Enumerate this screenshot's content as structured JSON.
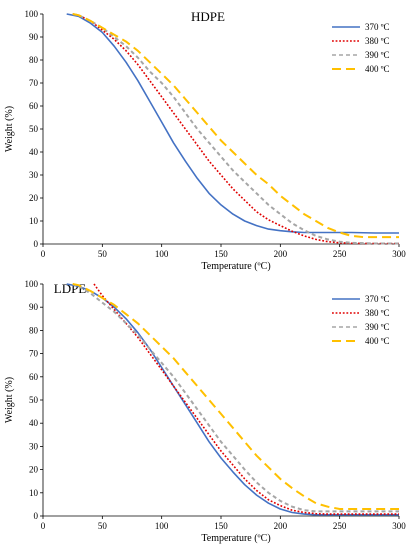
{
  "chart_data": [
    {
      "type": "line",
      "title": "HDPE",
      "xlabel": "Temperature (ºC)",
      "ylabel": "Weight (%)",
      "xlim": [
        0,
        300
      ],
      "ylim": [
        0,
        100
      ],
      "xticks": [
        0,
        50,
        100,
        150,
        200,
        250,
        300
      ],
      "yticks": [
        0,
        10,
        20,
        30,
        40,
        50,
        60,
        70,
        80,
        90,
        100
      ],
      "grid": false,
      "legend": "top-right",
      "series": [
        {
          "name": "370 ºC",
          "color": "#4472C4",
          "dash": "solid",
          "x": [
            20,
            30,
            40,
            50,
            60,
            70,
            80,
            90,
            100,
            110,
            120,
            130,
            140,
            150,
            160,
            170,
            180,
            190,
            200,
            210,
            220,
            240,
            260,
            280,
            300
          ],
          "y": [
            100,
            99,
            96,
            92,
            86,
            79,
            71,
            62,
            53,
            44,
            36,
            28.5,
            22,
            17,
            13,
            10,
            8,
            6.5,
            5.8,
            5.3,
            5,
            5,
            5,
            4.8,
            4.8
          ]
        },
        {
          "name": "380 ºC",
          "color": "#E00000",
          "dash": "dot",
          "x": [
            25,
            30,
            40,
            50,
            60,
            70,
            80,
            90,
            100,
            110,
            120,
            130,
            140,
            150,
            160,
            170,
            180,
            190,
            200,
            210,
            220,
            230,
            240,
            250,
            260,
            280,
            300
          ],
          "y": [
            100,
            99.5,
            97,
            93,
            89,
            84,
            78,
            71,
            64,
            57,
            50,
            43,
            36,
            30,
            24,
            19,
            14,
            10.5,
            8,
            5.5,
            3.5,
            2,
            1,
            0.5,
            0.3,
            0.2,
            0.2
          ]
        },
        {
          "name": "390 ºC",
          "color": "#A6A6A6",
          "dash": "dash",
          "x": [
            25,
            30,
            40,
            50,
            60,
            70,
            80,
            90,
            100,
            110,
            120,
            130,
            140,
            150,
            160,
            170,
            180,
            190,
            200,
            210,
            220,
            230,
            240,
            250,
            260,
            280,
            300
          ],
          "y": [
            100,
            99.5,
            97,
            94,
            90,
            86,
            81,
            75,
            70,
            64,
            57,
            50,
            44,
            38,
            32,
            27,
            22,
            17,
            13,
            9,
            6,
            3.5,
            2,
            1,
            0.5,
            0.2,
            0.2
          ]
        },
        {
          "name": "400 ºC",
          "color": "#FFC000",
          "dash": "longdash",
          "x": [
            25,
            30,
            40,
            50,
            60,
            70,
            80,
            90,
            100,
            110,
            120,
            130,
            140,
            150,
            160,
            170,
            180,
            190,
            200,
            210,
            220,
            230,
            240,
            250,
            260,
            270,
            280,
            290,
            300
          ],
          "y": [
            100,
            99.5,
            97,
            94,
            91,
            88,
            84,
            79,
            74,
            69,
            63,
            57,
            51,
            45,
            40,
            35,
            30,
            26,
            21,
            17,
            13,
            10,
            7,
            5,
            3.5,
            3,
            3,
            3,
            3
          ]
        }
      ]
    },
    {
      "type": "line",
      "title": "LDPE",
      "xlabel": "Temperature (ºC)",
      "ylabel": "Weight (%)",
      "xlim": [
        0,
        300
      ],
      "ylim": [
        0,
        100
      ],
      "xticks": [
        0,
        50,
        100,
        150,
        200,
        250,
        300
      ],
      "yticks": [
        0,
        10,
        20,
        30,
        40,
        50,
        60,
        70,
        80,
        90,
        100
      ],
      "grid": false,
      "legend": "top-right",
      "series": [
        {
          "name": "370 ºC",
          "color": "#4472C4",
          "dash": "solid",
          "x": [
            20,
            30,
            40,
            50,
            60,
            70,
            80,
            90,
            100,
            110,
            120,
            130,
            140,
            150,
            160,
            170,
            180,
            190,
            200,
            210,
            220,
            230,
            240,
            260,
            280,
            300
          ],
          "y": [
            100,
            99,
            97,
            94,
            90,
            85,
            79,
            72,
            64,
            56,
            48,
            40,
            32,
            25,
            19,
            13.5,
            9,
            5.5,
            3,
            1.5,
            0.8,
            0.5,
            0.5,
            0.5,
            0.5,
            0.5
          ]
        },
        {
          "name": "380 ºC",
          "color": "#E00000",
          "dash": "dot",
          "x": [
            43,
            50,
            60,
            70,
            80,
            90,
            100,
            110,
            120,
            130,
            140,
            150,
            160,
            170,
            180,
            190,
            200,
            210,
            220,
            230,
            240,
            260,
            280,
            300
          ],
          "y": [
            100,
            95,
            89,
            83,
            77,
            70,
            63,
            56,
            49,
            42,
            35,
            28,
            22,
            16,
            11,
            7,
            4.5,
            2.5,
            1.5,
            1,
            0.8,
            0.8,
            0.8,
            0.8
          ]
        },
        {
          "name": "390 ºC",
          "color": "#A6A6A6",
          "dash": "dash",
          "x": [
            25,
            30,
            40,
            50,
            60,
            70,
            80,
            90,
            100,
            110,
            120,
            130,
            140,
            150,
            160,
            170,
            180,
            190,
            200,
            210,
            220,
            230,
            240,
            260,
            280,
            300
          ],
          "y": [
            100,
            99,
            96,
            92,
            88,
            83,
            78,
            72,
            66,
            60,
            53,
            46,
            39,
            32,
            26,
            20,
            14.5,
            10,
            6.5,
            4,
            2.5,
            2,
            2,
            2,
            2,
            2
          ]
        },
        {
          "name": "400 ºC",
          "color": "#FFC000",
          "dash": "longdash",
          "x": [
            25,
            30,
            40,
            50,
            60,
            70,
            80,
            90,
            100,
            110,
            120,
            130,
            140,
            150,
            160,
            170,
            180,
            190,
            200,
            210,
            220,
            230,
            240,
            250,
            260,
            280,
            300
          ],
          "y": [
            100,
            99.5,
            97,
            94,
            91,
            87,
            83,
            78,
            73,
            68,
            62,
            56,
            50,
            44,
            38,
            32,
            26,
            21,
            16,
            12,
            8.5,
            5.5,
            4,
            3,
            3,
            3,
            3
          ]
        }
      ]
    }
  ]
}
